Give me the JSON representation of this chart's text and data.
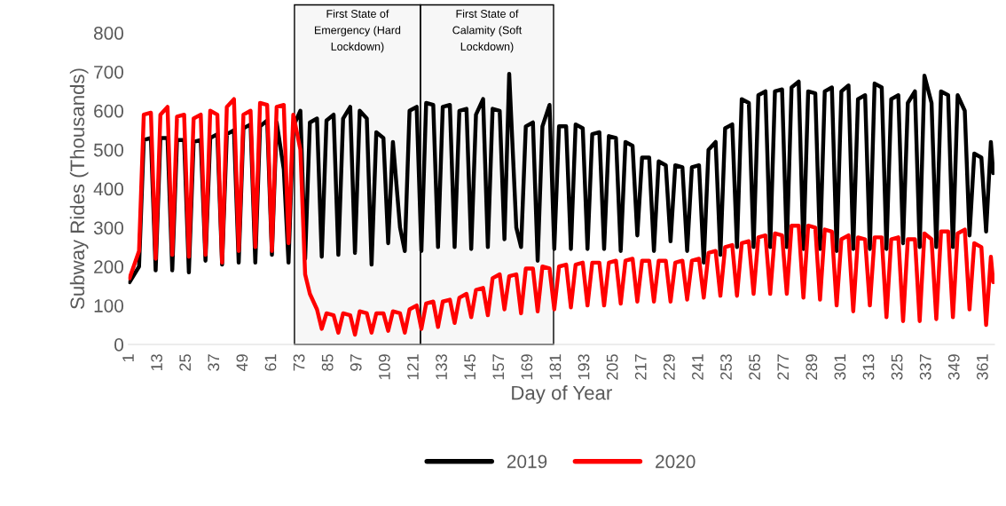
{
  "chart_data": {
    "type": "line",
    "xlabel": "Day of Year",
    "ylabel": "Subway Rides (Thousands)",
    "x": [
      1,
      5,
      7,
      10,
      12,
      14,
      17,
      19,
      21,
      24,
      26,
      28,
      31,
      33,
      35,
      38,
      40,
      42,
      45,
      47,
      49,
      52,
      54,
      56,
      59,
      61,
      63,
      66,
      68,
      70,
      73,
      75,
      77,
      80,
      82,
      84,
      87,
      89,
      91,
      94,
      96,
      98,
      101,
      103,
      105,
      108,
      110,
      112,
      115,
      117,
      119,
      122,
      124,
      126,
      129,
      131,
      133,
      136,
      138,
      140,
      143,
      145,
      147,
      150,
      152,
      154,
      157,
      159,
      161,
      164,
      166,
      168,
      171,
      173,
      175,
      178,
      180,
      182,
      185,
      187,
      189,
      192,
      194,
      196,
      199,
      201,
      203,
      206,
      208,
      210,
      213,
      215,
      217,
      220,
      222,
      224,
      227,
      229,
      231,
      234,
      236,
      238,
      241,
      243,
      245,
      248,
      250,
      252,
      255,
      257,
      259,
      262,
      264,
      266,
      269,
      271,
      273,
      276,
      278,
      280,
      283,
      285,
      287,
      290,
      292,
      294,
      297,
      299,
      301,
      304,
      306,
      308,
      311,
      313,
      315,
      318,
      320,
      322,
      325,
      327,
      329,
      332,
      334,
      336,
      339,
      341,
      343,
      346,
      348,
      350,
      353,
      355,
      357,
      360,
      362,
      364,
      365
    ],
    "xlim": [
      0.5,
      365.5
    ],
    "xticks": [
      1,
      13,
      25,
      37,
      49,
      61,
      73,
      85,
      97,
      109,
      121,
      133,
      145,
      157,
      169,
      181,
      193,
      205,
      217,
      229,
      241,
      253,
      265,
      277,
      289,
      301,
      313,
      325,
      337,
      349,
      361
    ],
    "ylim": [
      0,
      800
    ],
    "yticks": [
      0,
      100,
      200,
      300,
      400,
      500,
      600,
      700,
      800
    ],
    "series": [
      {
        "name": "2019",
        "color": "#000000",
        "values": [
          160,
          200,
          525,
          530,
          190,
          530,
          530,
          190,
          525,
          525,
          185,
          520,
          525,
          215,
          530,
          540,
          205,
          540,
          550,
          210,
          555,
          565,
          210,
          560,
          575,
          230,
          570,
          450,
          210,
          560,
          600,
          220,
          570,
          580,
          225,
          575,
          590,
          230,
          580,
          610,
          235,
          600,
          580,
          205,
          545,
          530,
          260,
          520,
          300,
          240,
          600,
          610,
          240,
          620,
          615,
          250,
          610,
          615,
          250,
          600,
          605,
          245,
          590,
          630,
          250,
          605,
          600,
          270,
          695,
          300,
          250,
          560,
          570,
          215,
          560,
          615,
          245,
          560,
          560,
          245,
          565,
          555,
          245,
          540,
          545,
          245,
          535,
          530,
          240,
          520,
          510,
          280,
          480,
          480,
          240,
          470,
          460,
          265,
          460,
          455,
          240,
          455,
          460,
          210,
          500,
          520,
          230,
          555,
          565,
          250,
          630,
          620,
          250,
          640,
          650,
          250,
          650,
          655,
          250,
          660,
          675,
          245,
          650,
          645,
          245,
          650,
          660,
          240,
          650,
          665,
          245,
          630,
          640,
          245,
          670,
          660,
          245,
          630,
          640,
          260,
          620,
          650,
          250,
          690,
          620,
          250,
          650,
          640,
          250,
          640,
          600,
          280,
          490,
          480,
          290,
          520,
          440
        ]
      },
      {
        "name": "2020",
        "color": "#ff0000",
        "values": [
          170,
          240,
          590,
          595,
          220,
          590,
          610,
          230,
          585,
          590,
          225,
          580,
          590,
          230,
          600,
          590,
          210,
          610,
          630,
          240,
          590,
          600,
          250,
          620,
          615,
          240,
          610,
          615,
          260,
          590,
          500,
          180,
          130,
          90,
          40,
          80,
          75,
          30,
          80,
          75,
          25,
          85,
          80,
          30,
          80,
          80,
          35,
          85,
          80,
          30,
          90,
          100,
          40,
          105,
          110,
          45,
          110,
          115,
          55,
          120,
          130,
          70,
          140,
          145,
          75,
          170,
          180,
          90,
          175,
          180,
          80,
          195,
          195,
          85,
          200,
          195,
          90,
          200,
          205,
          95,
          205,
          210,
          100,
          210,
          210,
          100,
          210,
          215,
          105,
          215,
          220,
          110,
          215,
          215,
          110,
          215,
          215,
          110,
          210,
          215,
          115,
          215,
          220,
          120,
          235,
          240,
          125,
          250,
          255,
          125,
          260,
          265,
          130,
          275,
          280,
          130,
          285,
          280,
          130,
          305,
          305,
          120,
          305,
          300,
          115,
          295,
          290,
          100,
          270,
          280,
          85,
          275,
          270,
          100,
          275,
          275,
          70,
          270,
          275,
          60,
          270,
          270,
          60,
          285,
          270,
          65,
          290,
          290,
          70,
          285,
          295,
          90,
          260,
          250,
          50,
          225,
          160
        ]
      }
    ],
    "bands": [
      {
        "axis": "x",
        "from": 70.5,
        "to": 123.6,
        "label": "First State of Emergency (Hard Lockdown)",
        "color": "#000000"
      },
      {
        "axis": "x",
        "from": 123.6,
        "to": 179.7,
        "label": "First State of Calamity (Soft Lockdown)",
        "color": "#000000"
      }
    ],
    "line_style": "solid",
    "marker": "none",
    "grid": false,
    "legend": "bottom"
  }
}
